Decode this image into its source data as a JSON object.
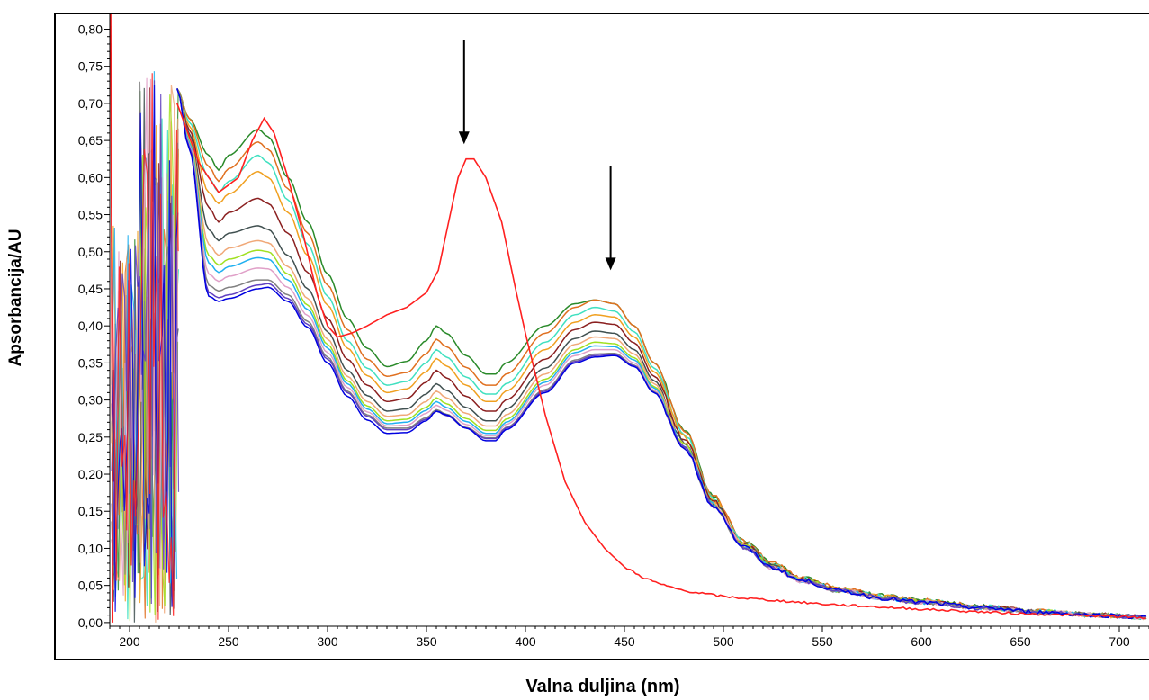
{
  "chart_data": {
    "type": "line",
    "title": "",
    "xlabel": "Valna duljina (nm)",
    "ylabel": "Apsorbancija/AU",
    "xlim": [
      190,
      715
    ],
    "ylim": [
      -0.005,
      0.82
    ],
    "x_ticks": [
      "200",
      "250",
      "300",
      "350",
      "400",
      "450",
      "500",
      "550",
      "600",
      "650",
      "700"
    ],
    "y_ticks": [
      "0,00",
      "0,05",
      "0,10",
      "0,15",
      "0,20",
      "0,25",
      "0,30",
      "0,35",
      "0,40",
      "0,45",
      "0,50",
      "0,55",
      "0,60",
      "0,65",
      "0,70",
      "0,75",
      "0,80"
    ],
    "grid": false,
    "legend": "none",
    "annotations": [
      {
        "type": "arrow-down",
        "x": 369,
        "y_top": 0.785,
        "y_tip": 0.645
      },
      {
        "type": "arrow-down",
        "x": 443,
        "y_top": 0.615,
        "y_tip": 0.475
      }
    ],
    "reference_series": {
      "color": "#ff2020",
      "points": [
        [
          224,
          0.7
        ],
        [
          235,
          0.62
        ],
        [
          245,
          0.58
        ],
        [
          255,
          0.6
        ],
        [
          262,
          0.65
        ],
        [
          268,
          0.68
        ],
        [
          273,
          0.66
        ],
        [
          280,
          0.6
        ],
        [
          288,
          0.52
        ],
        [
          295,
          0.44
        ],
        [
          300,
          0.4
        ],
        [
          305,
          0.385
        ],
        [
          312,
          0.39
        ],
        [
          320,
          0.4
        ],
        [
          330,
          0.415
        ],
        [
          340,
          0.425
        ],
        [
          350,
          0.445
        ],
        [
          356,
          0.475
        ],
        [
          362,
          0.55
        ],
        [
          366,
          0.6
        ],
        [
          370,
          0.625
        ],
        [
          374,
          0.625
        ],
        [
          380,
          0.6
        ],
        [
          388,
          0.54
        ],
        [
          395,
          0.45
        ],
        [
          400,
          0.39
        ],
        [
          410,
          0.28
        ],
        [
          420,
          0.19
        ],
        [
          430,
          0.135
        ],
        [
          440,
          0.1
        ],
        [
          450,
          0.075
        ],
        [
          460,
          0.06
        ],
        [
          470,
          0.05
        ],
        [
          480,
          0.043
        ],
        [
          500,
          0.035
        ],
        [
          550,
          0.025
        ],
        [
          600,
          0.018
        ],
        [
          650,
          0.012
        ],
        [
          700,
          0.008
        ],
        [
          715,
          0.006
        ]
      ]
    },
    "series": [
      {
        "color": "#2a8a2a",
        "values": [
          0.72,
          0.68,
          0.63,
          0.61,
          0.63,
          0.665,
          0.655,
          0.6,
          0.54,
          0.47,
          0.41,
          0.37,
          0.345,
          0.352,
          0.38,
          0.4,
          0.39,
          0.36,
          0.335,
          0.335,
          0.35,
          0.4,
          0.43,
          0.435,
          0.43,
          0.4,
          0.35,
          0.26,
          0.17,
          0.11,
          0.08,
          0.06,
          0.045,
          0.036,
          0.03,
          0.022,
          0.015,
          0.01,
          0.007
        ]
      },
      {
        "color": "#e07020",
        "values": [
          0.72,
          0.68,
          0.615,
          0.595,
          0.612,
          0.648,
          0.638,
          0.585,
          0.525,
          0.455,
          0.395,
          0.355,
          0.332,
          0.337,
          0.362,
          0.382,
          0.372,
          0.344,
          0.32,
          0.32,
          0.335,
          0.39,
          0.425,
          0.435,
          0.43,
          0.4,
          0.35,
          0.26,
          0.17,
          0.11,
          0.08,
          0.06,
          0.045,
          0.036,
          0.03,
          0.022,
          0.015,
          0.01,
          0.007
        ]
      },
      {
        "color": "#40e0c0",
        "values": [
          0.72,
          0.675,
          0.6,
          0.58,
          0.595,
          0.63,
          0.62,
          0.57,
          0.51,
          0.44,
          0.38,
          0.343,
          0.32,
          0.325,
          0.35,
          0.368,
          0.358,
          0.331,
          0.308,
          0.308,
          0.322,
          0.378,
          0.415,
          0.425,
          0.42,
          0.392,
          0.343,
          0.255,
          0.167,
          0.108,
          0.078,
          0.059,
          0.044,
          0.035,
          0.029,
          0.021,
          0.015,
          0.01,
          0.007
        ]
      },
      {
        "color": "#f0a020",
        "values": [
          0.72,
          0.67,
          0.58,
          0.565,
          0.578,
          0.608,
          0.6,
          0.553,
          0.495,
          0.428,
          0.37,
          0.333,
          0.31,
          0.315,
          0.338,
          0.356,
          0.346,
          0.32,
          0.298,
          0.298,
          0.312,
          0.368,
          0.405,
          0.415,
          0.412,
          0.385,
          0.338,
          0.252,
          0.165,
          0.107,
          0.077,
          0.058,
          0.044,
          0.035,
          0.029,
          0.021,
          0.015,
          0.01,
          0.007
        ]
      },
      {
        "color": "#8b2020",
        "values": [
          0.72,
          0.665,
          0.56,
          0.54,
          0.553,
          0.572,
          0.565,
          0.525,
          0.472,
          0.41,
          0.355,
          0.32,
          0.298,
          0.302,
          0.324,
          0.34,
          0.33,
          0.305,
          0.285,
          0.285,
          0.3,
          0.355,
          0.395,
          0.405,
          0.402,
          0.377,
          0.332,
          0.248,
          0.163,
          0.106,
          0.076,
          0.058,
          0.043,
          0.034,
          0.028,
          0.021,
          0.015,
          0.01,
          0.007
        ]
      },
      {
        "color": "#405050",
        "values": [
          0.72,
          0.66,
          0.53,
          0.515,
          0.525,
          0.535,
          0.53,
          0.495,
          0.45,
          0.392,
          0.34,
          0.306,
          0.285,
          0.288,
          0.308,
          0.322,
          0.313,
          0.29,
          0.272,
          0.272,
          0.288,
          0.343,
          0.383,
          0.393,
          0.39,
          0.368,
          0.326,
          0.244,
          0.161,
          0.105,
          0.076,
          0.057,
          0.043,
          0.034,
          0.028,
          0.02,
          0.014,
          0.01,
          0.007
        ]
      },
      {
        "color": "#f0a878",
        "values": [
          0.72,
          0.655,
          0.51,
          0.495,
          0.505,
          0.515,
          0.512,
          0.48,
          0.437,
          0.382,
          0.332,
          0.298,
          0.278,
          0.28,
          0.298,
          0.312,
          0.303,
          0.282,
          0.265,
          0.265,
          0.28,
          0.335,
          0.375,
          0.385,
          0.383,
          0.362,
          0.322,
          0.242,
          0.16,
          0.104,
          0.075,
          0.057,
          0.043,
          0.034,
          0.028,
          0.02,
          0.014,
          0.01,
          0.007
        ]
      },
      {
        "color": "#a0e020",
        "values": [
          0.72,
          0.65,
          0.495,
          0.482,
          0.49,
          0.502,
          0.5,
          0.47,
          0.428,
          0.375,
          0.326,
          0.292,
          0.272,
          0.274,
          0.29,
          0.303,
          0.295,
          0.275,
          0.259,
          0.259,
          0.274,
          0.328,
          0.368,
          0.378,
          0.376,
          0.357,
          0.318,
          0.24,
          0.159,
          0.104,
          0.075,
          0.057,
          0.043,
          0.034,
          0.028,
          0.02,
          0.014,
          0.01,
          0.007
        ]
      },
      {
        "color": "#20b0f0",
        "values": [
          0.72,
          0.648,
          0.485,
          0.472,
          0.48,
          0.492,
          0.49,
          0.462,
          0.422,
          0.37,
          0.322,
          0.288,
          0.268,
          0.27,
          0.286,
          0.298,
          0.29,
          0.271,
          0.255,
          0.255,
          0.27,
          0.324,
          0.364,
          0.373,
          0.372,
          0.354,
          0.316,
          0.239,
          0.158,
          0.103,
          0.074,
          0.056,
          0.042,
          0.033,
          0.027,
          0.02,
          0.014,
          0.01,
          0.007
        ]
      },
      {
        "color": "#e0a0c8",
        "values": [
          0.72,
          0.645,
          0.47,
          0.46,
          0.467,
          0.478,
          0.477,
          0.452,
          0.414,
          0.364,
          0.317,
          0.284,
          0.265,
          0.266,
          0.282,
          0.293,
          0.286,
          0.267,
          0.252,
          0.252,
          0.267,
          0.32,
          0.36,
          0.368,
          0.368,
          0.35,
          0.313,
          0.237,
          0.157,
          0.103,
          0.074,
          0.056,
          0.042,
          0.033,
          0.027,
          0.02,
          0.014,
          0.01,
          0.007
        ]
      },
      {
        "color": "#808080",
        "values": [
          0.72,
          0.643,
          0.455,
          0.447,
          0.452,
          0.462,
          0.462,
          0.442,
          0.406,
          0.358,
          0.312,
          0.28,
          0.262,
          0.262,
          0.276,
          0.287,
          0.281,
          0.263,
          0.249,
          0.249,
          0.263,
          0.314,
          0.354,
          0.362,
          0.363,
          0.347,
          0.311,
          0.236,
          0.157,
          0.102,
          0.074,
          0.056,
          0.042,
          0.033,
          0.027,
          0.02,
          0.014,
          0.01,
          0.007
        ]
      },
      {
        "color": "#6040c0",
        "values": [
          0.72,
          0.642,
          0.445,
          0.438,
          0.442,
          0.455,
          0.457,
          0.437,
          0.402,
          0.355,
          0.31,
          0.278,
          0.26,
          0.26,
          0.274,
          0.285,
          0.279,
          0.262,
          0.248,
          0.248,
          0.262,
          0.312,
          0.352,
          0.36,
          0.361,
          0.346,
          0.31,
          0.236,
          0.157,
          0.102,
          0.074,
          0.056,
          0.042,
          0.033,
          0.027,
          0.02,
          0.014,
          0.01,
          0.007
        ]
      },
      {
        "color": "#0000e0",
        "values": [
          0.72,
          0.64,
          0.44,
          0.433,
          0.437,
          0.45,
          0.452,
          0.433,
          0.398,
          0.35,
          0.305,
          0.273,
          0.255,
          0.256,
          0.272,
          0.285,
          0.28,
          0.262,
          0.245,
          0.245,
          0.26,
          0.31,
          0.35,
          0.358,
          0.36,
          0.345,
          0.31,
          0.236,
          0.157,
          0.102,
          0.074,
          0.056,
          0.042,
          0.033,
          0.027,
          0.02,
          0.014,
          0.01,
          0.007
        ]
      }
    ]
  }
}
